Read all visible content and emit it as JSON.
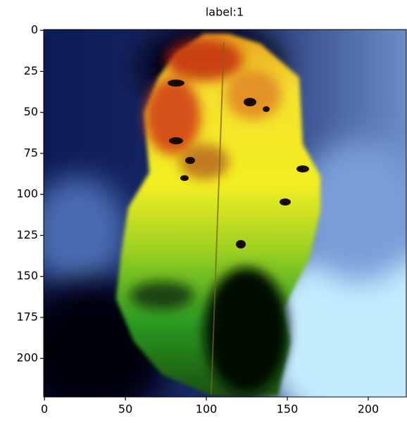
{
  "chart_data": {
    "type": "image",
    "title": "label:1",
    "xlim": [
      -0.5,
      223.5
    ],
    "ylim": [
      223.5,
      -0.5
    ],
    "xticks": [
      0,
      50,
      100,
      150,
      200
    ],
    "yticks": [
      0,
      25,
      50,
      75,
      100,
      125,
      150,
      175,
      200
    ]
  }
}
